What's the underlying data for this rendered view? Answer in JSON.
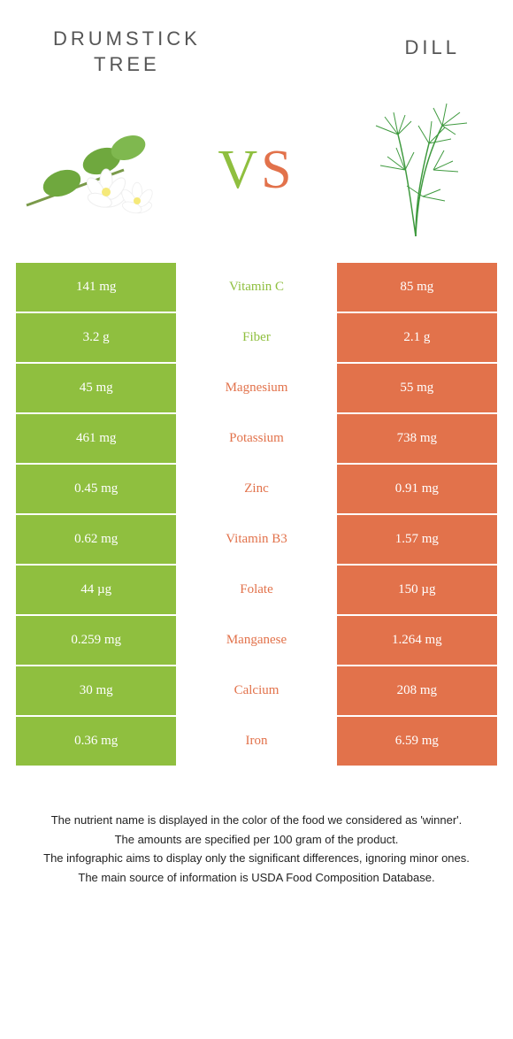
{
  "colors": {
    "green": "#8fbf3f",
    "orange": "#e2724b",
    "header_text": "#555555",
    "footer_text": "#222222",
    "white": "#ffffff"
  },
  "header": {
    "left_line1": "DRUMSTICK",
    "left_line2": "TREE",
    "right": "DILL"
  },
  "vs": {
    "v": "V",
    "s": "S"
  },
  "rows": [
    {
      "left": "141 mg",
      "mid": "Vitamin C",
      "right": "85 mg",
      "winner": "left"
    },
    {
      "left": "3.2 g",
      "mid": "Fiber",
      "right": "2.1 g",
      "winner": "left"
    },
    {
      "left": "45 mg",
      "mid": "Magnesium",
      "right": "55 mg",
      "winner": "right"
    },
    {
      "left": "461 mg",
      "mid": "Potassium",
      "right": "738 mg",
      "winner": "right"
    },
    {
      "left": "0.45 mg",
      "mid": "Zinc",
      "right": "0.91 mg",
      "winner": "right"
    },
    {
      "left": "0.62 mg",
      "mid": "Vitamin B3",
      "right": "1.57 mg",
      "winner": "right"
    },
    {
      "left": "44 µg",
      "mid": "Folate",
      "right": "150 µg",
      "winner": "right"
    },
    {
      "left": "0.259 mg",
      "mid": "Manganese",
      "right": "1.264 mg",
      "winner": "right"
    },
    {
      "left": "30 mg",
      "mid": "Calcium",
      "right": "208 mg",
      "winner": "right"
    },
    {
      "left": "0.36 mg",
      "mid": "Iron",
      "right": "6.59 mg",
      "winner": "right"
    }
  ],
  "footer": {
    "l1": "The nutrient name is displayed in the color of the food we considered as 'winner'.",
    "l2": "The amounts are specified per 100 gram of the product.",
    "l3": "The infographic aims to display only the significant differences, ignoring minor ones.",
    "l4": "The main source of information is USDA Food Composition Database."
  }
}
